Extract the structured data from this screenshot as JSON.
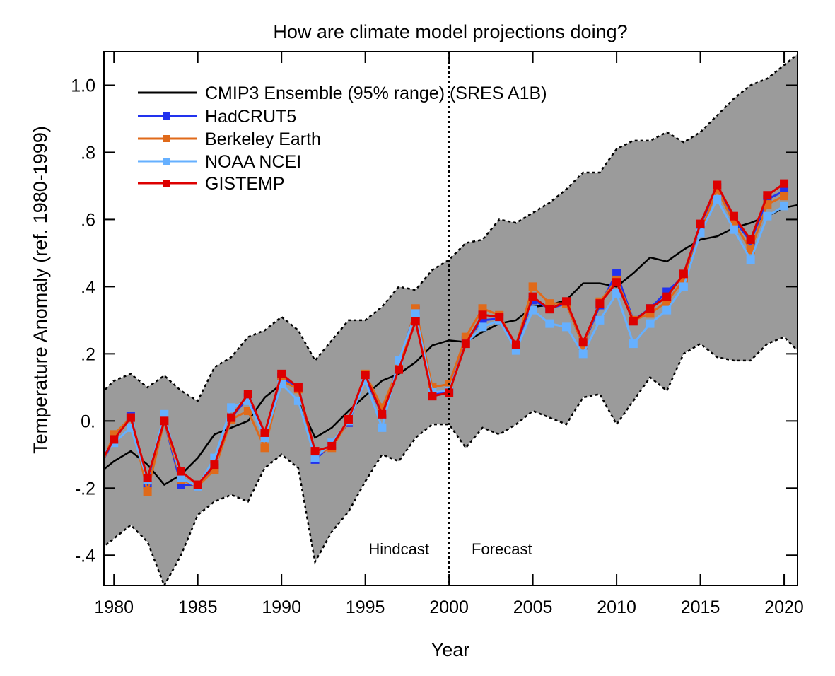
{
  "chart_data": {
    "type": "line",
    "title": "How are climate model projections doing?",
    "xlabel": "Year",
    "ylabel": "Temperature Anomaly (ref. 1980-1999)",
    "xlim": [
      1979.4,
      2020.8
    ],
    "ylim": [
      -0.49,
      1.1
    ],
    "x_ticks": [
      1980,
      1985,
      1990,
      1995,
      2000,
      2005,
      2010,
      2015,
      2020
    ],
    "x_tick_labels": [
      "1980",
      "1985",
      "1990",
      "1995",
      "2000",
      "2005",
      "2010",
      "2015",
      "2020"
    ],
    "y_ticks": [
      1.0,
      0.8,
      0.6,
      0.4,
      0.2,
      0.0,
      -0.2,
      -0.4
    ],
    "y_tick_labels": [
      "1.0",
      ".8",
      ".6",
      ".4",
      ".2",
      "0.",
      "-.2",
      "-.4"
    ],
    "grid": false,
    "legend_placement": "top-left",
    "divider": {
      "x": 2000,
      "left_label": "Hindcast",
      "right_label": "Forecast"
    },
    "model": {
      "name": "CMIP3 Ensemble (95% range) (SRES A1B)",
      "color": "#000000",
      "band_color": "#9b9b9b",
      "x": [
        1979,
        1980,
        1981,
        1982,
        1983,
        1984,
        1985,
        1986,
        1987,
        1988,
        1989,
        1990,
        1991,
        1992,
        1993,
        1994,
        1995,
        1996,
        1997,
        1998,
        1999,
        2000,
        2001,
        2002,
        2003,
        2004,
        2005,
        2006,
        2007,
        2008,
        2009,
        2010,
        2011,
        2012,
        2013,
        2014,
        2015,
        2016,
        2017,
        2018,
        2019,
        2020,
        2021
      ],
      "mean": [
        -0.16,
        -0.12,
        -0.09,
        -0.13,
        -0.19,
        -0.16,
        -0.11,
        -0.04,
        -0.02,
        0.0,
        0.07,
        0.11,
        0.06,
        -0.05,
        -0.02,
        0.03,
        0.075,
        0.12,
        0.14,
        0.175,
        0.225,
        0.24,
        0.235,
        0.265,
        0.29,
        0.3,
        0.34,
        0.345,
        0.36,
        0.41,
        0.41,
        0.4,
        0.44,
        0.487,
        0.475,
        0.51,
        0.54,
        0.55,
        0.575,
        0.59,
        0.61,
        0.635,
        0.645
      ],
      "upper": [
        0.07,
        0.12,
        0.14,
        0.1,
        0.135,
        0.09,
        0.06,
        0.16,
        0.19,
        0.25,
        0.27,
        0.31,
        0.27,
        0.18,
        0.24,
        0.3,
        0.3,
        0.34,
        0.4,
        0.39,
        0.45,
        0.48,
        0.53,
        0.54,
        0.6,
        0.59,
        0.62,
        0.65,
        0.69,
        0.74,
        0.74,
        0.81,
        0.835,
        0.835,
        0.86,
        0.83,
        0.86,
        0.91,
        0.96,
        1.0,
        1.02,
        1.06,
        1.1
      ],
      "lower": [
        -0.39,
        -0.35,
        -0.31,
        -0.36,
        -0.49,
        -0.4,
        -0.28,
        -0.24,
        -0.22,
        -0.24,
        -0.14,
        -0.1,
        -0.14,
        -0.42,
        -0.33,
        -0.27,
        -0.18,
        -0.1,
        -0.12,
        -0.05,
        -0.01,
        -0.01,
        -0.08,
        -0.02,
        -0.04,
        -0.01,
        0.03,
        0.01,
        -0.01,
        0.07,
        0.08,
        -0.01,
        0.06,
        0.13,
        0.09,
        0.2,
        0.23,
        0.19,
        0.18,
        0.18,
        0.23,
        0.25,
        0.2
      ]
    },
    "x": [
      1979,
      1980,
      1981,
      1982,
      1983,
      1984,
      1985,
      1986,
      1987,
      1988,
      1989,
      1990,
      1991,
      1992,
      1993,
      1994,
      1995,
      1996,
      1997,
      1998,
      1999,
      2000,
      2001,
      2002,
      2003,
      2004,
      2005,
      2006,
      2007,
      2008,
      2009,
      2010,
      2011,
      2012,
      2013,
      2014,
      2015,
      2016,
      2017,
      2018,
      2019,
      2020
    ],
    "series": [
      {
        "name": "HadCRUT5",
        "color": "#2233ee",
        "values": [
          -0.15,
          -0.055,
          0.015,
          -0.19,
          0.0,
          -0.19,
          -0.19,
          -0.14,
          0.01,
          0.07,
          -0.05,
          0.13,
          0.1,
          -0.115,
          -0.07,
          -0.005,
          0.13,
          0.02,
          0.17,
          0.33,
          0.08,
          0.09,
          0.24,
          0.3,
          0.305,
          0.225,
          0.36,
          0.335,
          0.35,
          0.225,
          0.345,
          0.44,
          0.3,
          0.335,
          0.385,
          0.43,
          0.585,
          0.695,
          0.6,
          0.535,
          0.66,
          0.685
        ]
      },
      {
        "name": "Berkeley Earth",
        "color": "#e06a1a",
        "values": [
          -0.16,
          -0.04,
          0.01,
          -0.21,
          0.0,
          -0.175,
          -0.195,
          -0.145,
          0.005,
          0.03,
          -0.08,
          0.12,
          0.095,
          -0.1,
          -0.08,
          0.0,
          0.14,
          0.04,
          0.16,
          0.335,
          0.1,
          0.11,
          0.25,
          0.335,
          0.315,
          0.225,
          0.4,
          0.35,
          0.35,
          0.225,
          0.355,
          0.42,
          0.3,
          0.32,
          0.355,
          0.42,
          0.56,
          0.69,
          0.59,
          0.51,
          0.645,
          0.67
        ]
      },
      {
        "name": "NOAA NCEI",
        "color": "#66b0ff",
        "values": [
          -0.12,
          -0.065,
          -0.02,
          -0.175,
          0.02,
          -0.17,
          -0.195,
          -0.11,
          0.04,
          0.06,
          -0.05,
          0.11,
          0.06,
          -0.11,
          -0.065,
          0.0,
          0.12,
          -0.02,
          0.18,
          0.32,
          0.085,
          0.09,
          0.23,
          0.28,
          0.3,
          0.21,
          0.33,
          0.29,
          0.28,
          0.2,
          0.3,
          0.38,
          0.23,
          0.29,
          0.33,
          0.4,
          0.56,
          0.66,
          0.57,
          0.48,
          0.61,
          0.64
        ]
      },
      {
        "name": "GISTEMP",
        "color": "#dd0000",
        "values": [
          -0.14,
          -0.055,
          0.01,
          -0.17,
          0.0,
          -0.15,
          -0.19,
          -0.13,
          0.01,
          0.08,
          -0.035,
          0.14,
          0.1,
          -0.09,
          -0.075,
          0.005,
          0.137,
          0.02,
          0.153,
          0.297,
          0.074,
          0.084,
          0.23,
          0.316,
          0.31,
          0.227,
          0.37,
          0.333,
          0.356,
          0.234,
          0.35,
          0.413,
          0.297,
          0.335,
          0.37,
          0.438,
          0.587,
          0.703,
          0.61,
          0.54,
          0.672,
          0.707
        ]
      }
    ]
  }
}
